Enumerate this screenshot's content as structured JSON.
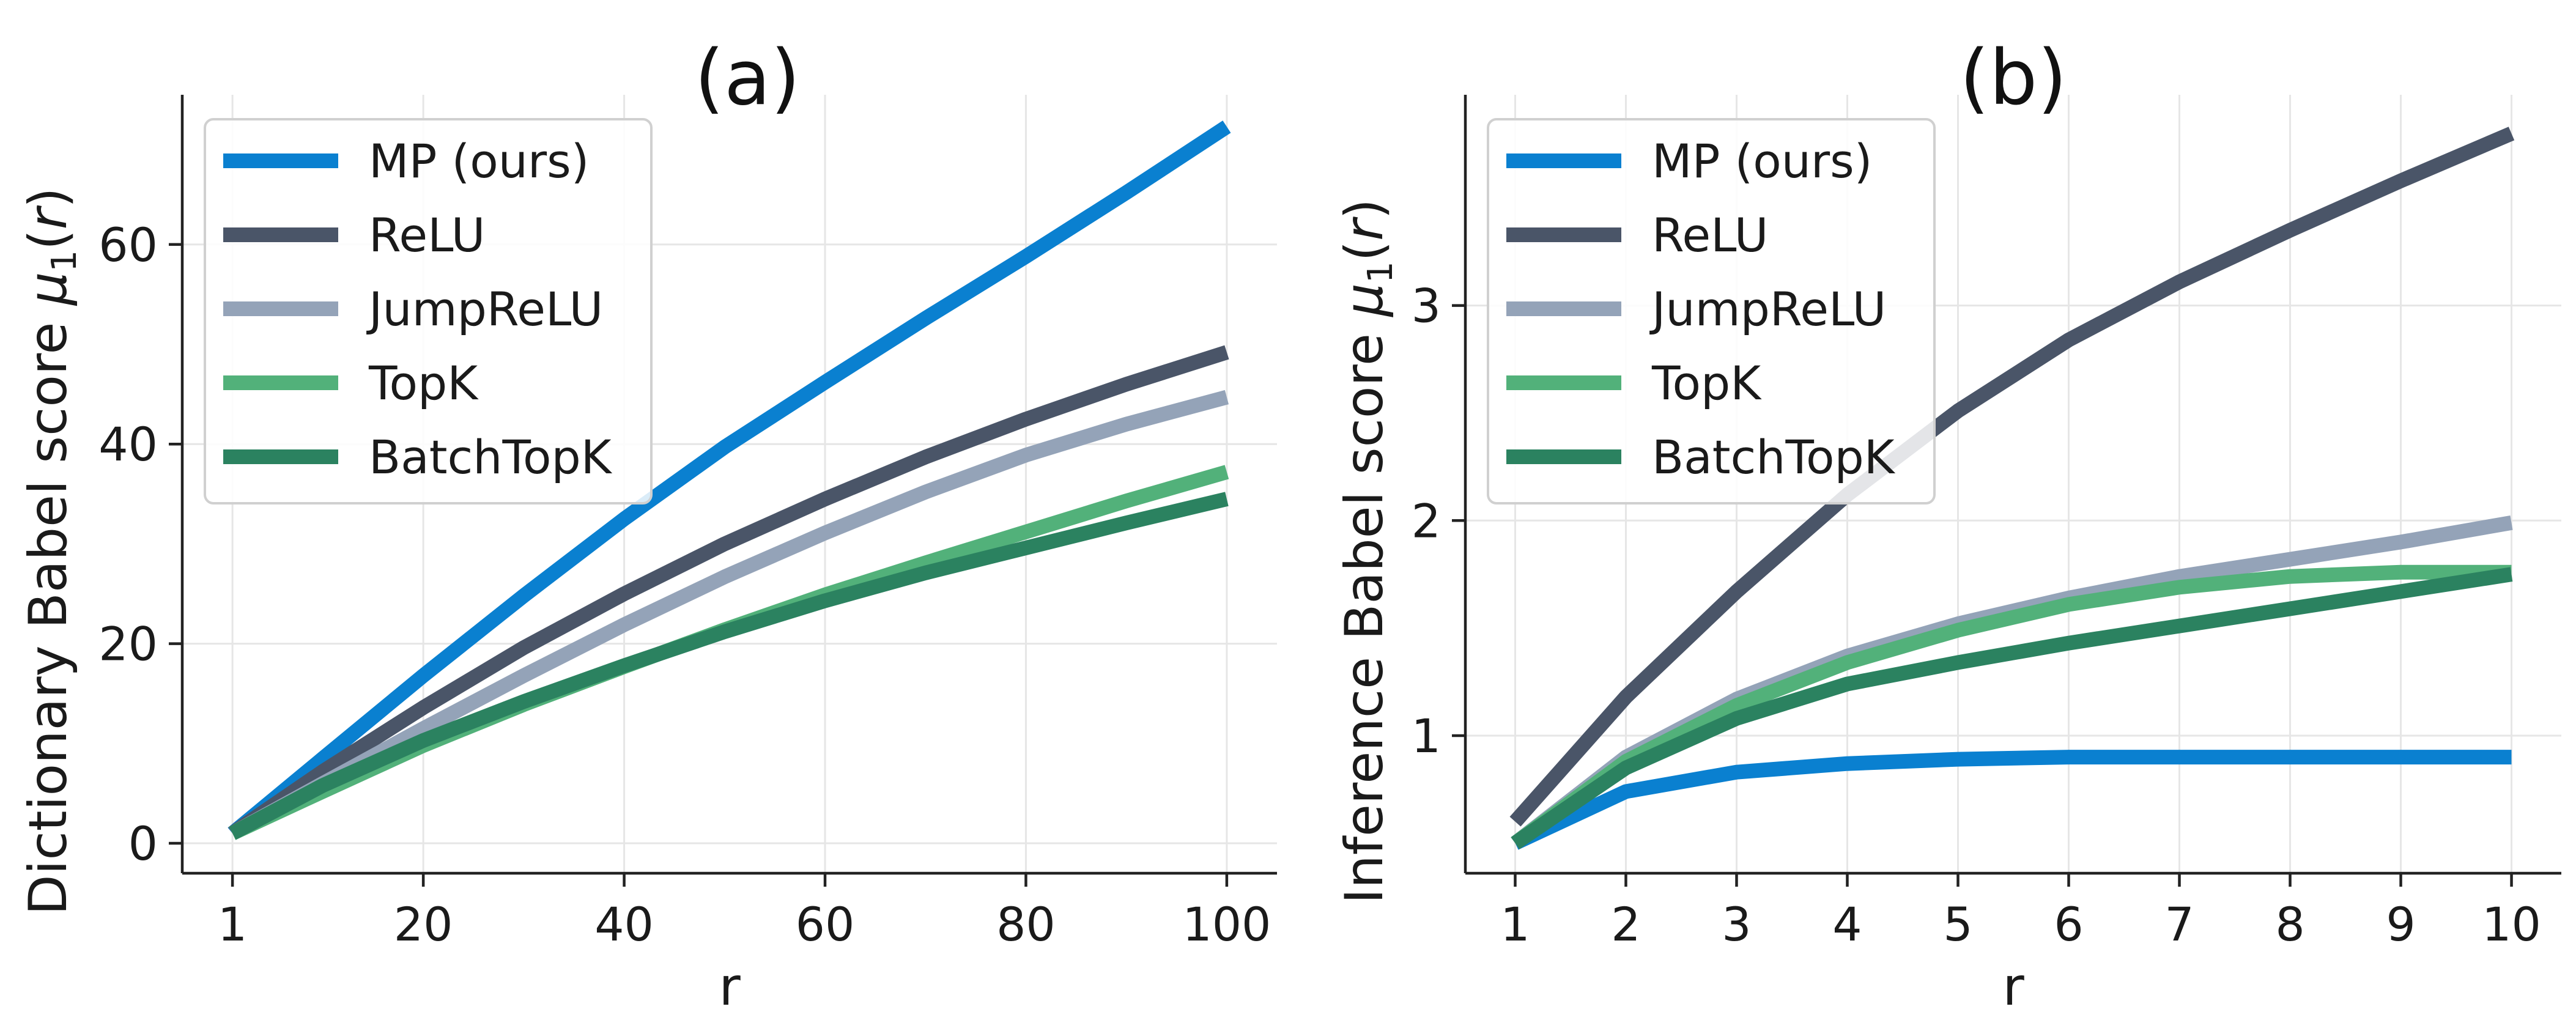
{
  "chart_data": [
    {
      "type": "line",
      "panel_label": "(a)",
      "xlabel": "r",
      "ylabel_prefix": "Dictionary Babel score ",
      "ylabel_mu": "μ",
      "ylabel_sub": "1",
      "ylabel_paren_open": "(",
      "ylabel_r": "r",
      "ylabel_paren_close": ")",
      "xlim": [
        -4,
        105
      ],
      "ylim": [
        -3,
        75
      ],
      "x_ticks": [
        1,
        20,
        40,
        60,
        80,
        100
      ],
      "x_tick_labels": [
        "1",
        "20",
        "40",
        "60",
        "80",
        "100"
      ],
      "y_ticks": [
        0,
        20,
        40,
        60
      ],
      "y_tick_labels": [
        "0",
        "20",
        "40",
        "60"
      ],
      "grid": true,
      "legend_position": "upper-left",
      "x": [
        1,
        10,
        20,
        30,
        40,
        50,
        60,
        70,
        80,
        90,
        100
      ],
      "series": [
        {
          "name": "MP (ours)",
          "color": "#0a80d0",
          "values": [
            1,
            8.5,
            16.8,
            24.8,
            32.5,
            39.7,
            46.2,
            52.6,
            58.8,
            65.2,
            71.8
          ]
        },
        {
          "name": "ReLU",
          "color": "#4a5568",
          "values": [
            1,
            7.2,
            13.6,
            19.6,
            25,
            30,
            34.5,
            38.7,
            42.5,
            46,
            49.2
          ]
        },
        {
          "name": "JumpReLU",
          "color": "#94a3b8",
          "values": [
            1,
            6,
            11.5,
            16.8,
            21.9,
            26.7,
            31.1,
            35.2,
            38.9,
            42,
            44.7
          ]
        },
        {
          "name": "TopK",
          "color": "#52b17a",
          "values": [
            1,
            5.2,
            9.8,
            13.9,
            17.7,
            21.4,
            24.9,
            28.1,
            31.2,
            34.3,
            37.2
          ]
        },
        {
          "name": "BatchTopK",
          "color": "#2b8260",
          "values": [
            1,
            5.8,
            10.3,
            14.2,
            17.8,
            21.2,
            24.3,
            27.1,
            29.6,
            32.1,
            34.5
          ]
        }
      ]
    },
    {
      "type": "line",
      "panel_label": "(b)",
      "xlabel": "r",
      "ylabel_prefix": "Inference Babel score ",
      "ylabel_mu": "μ",
      "ylabel_sub": "1",
      "ylabel_paren_open": "(",
      "ylabel_r": "r",
      "ylabel_paren_close": ")",
      "xlim": [
        0.55,
        10.45
      ],
      "ylim": [
        0.36,
        3.98
      ],
      "x_ticks": [
        1,
        2,
        3,
        4,
        5,
        6,
        7,
        8,
        9,
        10
      ],
      "x_tick_labels": [
        "1",
        "2",
        "3",
        "4",
        "5",
        "6",
        "7",
        "8",
        "9",
        "10"
      ],
      "y_ticks": [
        1,
        2,
        3
      ],
      "y_tick_labels": [
        "1",
        "2",
        "3"
      ],
      "grid": true,
      "legend_position": "upper-left",
      "x": [
        1,
        2,
        3,
        4,
        5,
        6,
        7,
        8,
        9,
        10
      ],
      "series": [
        {
          "name": "MP (ours)",
          "color": "#0a80d0",
          "values": [
            0.5,
            0.74,
            0.83,
            0.87,
            0.89,
            0.9,
            0.9,
            0.9,
            0.9,
            0.9
          ]
        },
        {
          "name": "ReLU",
          "color": "#4a5568",
          "values": [
            0.6,
            1.18,
            1.67,
            2.12,
            2.51,
            2.84,
            3.11,
            3.35,
            3.58,
            3.8
          ]
        },
        {
          "name": "JumpReLU",
          "color": "#94a3b8",
          "values": [
            0.5,
            0.9,
            1.17,
            1.37,
            1.52,
            1.64,
            1.74,
            1.82,
            1.9,
            1.99
          ]
        },
        {
          "name": "TopK",
          "color": "#52b17a",
          "values": [
            0.5,
            0.88,
            1.14,
            1.34,
            1.49,
            1.61,
            1.69,
            1.74,
            1.76,
            1.76
          ]
        },
        {
          "name": "BatchTopK",
          "color": "#2b8260",
          "values": [
            0.5,
            0.85,
            1.08,
            1.24,
            1.34,
            1.43,
            1.51,
            1.59,
            1.67,
            1.75
          ]
        }
      ]
    }
  ]
}
